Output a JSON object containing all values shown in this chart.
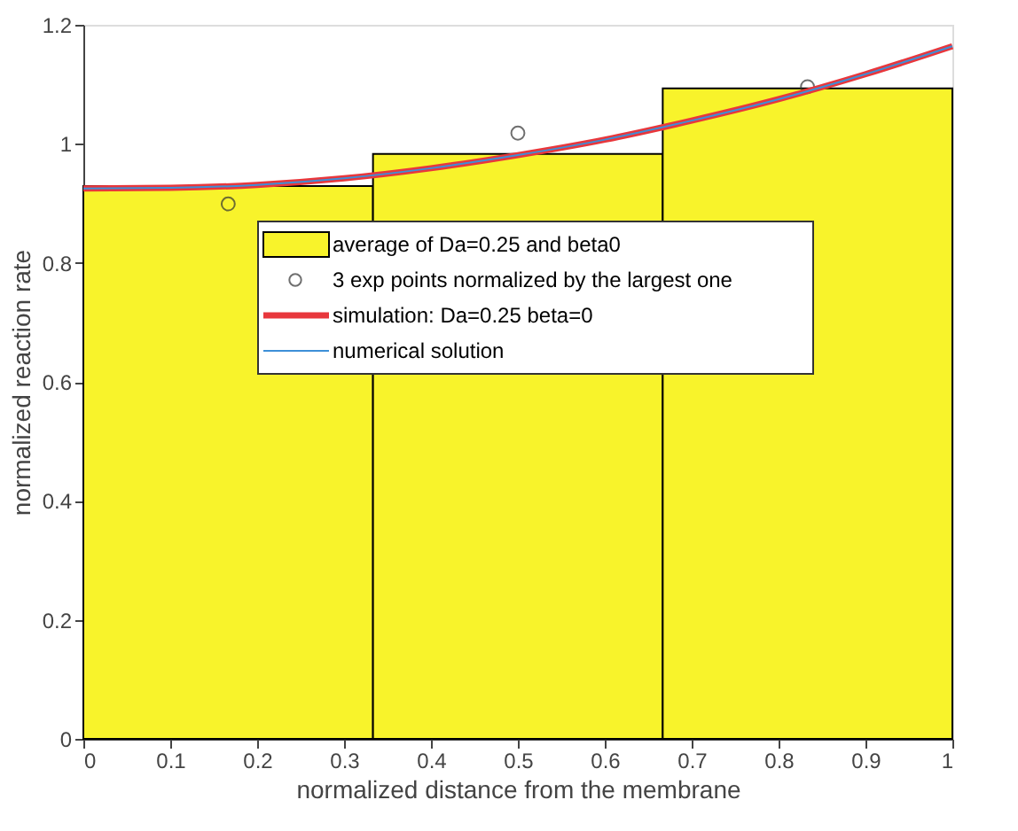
{
  "chart_data": {
    "type": "histogram",
    "xlabel": "normalized distance from the membrane",
    "ylabel": "normalized reaction rate",
    "xlim": [
      0,
      1
    ],
    "xticks": [
      0,
      0.1,
      0.2,
      0.3,
      0.4,
      0.5,
      0.6,
      0.7,
      0.8,
      0.9,
      1
    ],
    "ylim": [
      0,
      1.2
    ],
    "yticks": [
      0,
      0.2,
      0.4,
      0.6,
      0.8,
      1,
      1.2
    ],
    "grid": false,
    "legend": "top",
    "series": [
      {
        "name": "average of Da=0.25 and beta0",
        "color": "#f8f32b",
        "bins": [
          0,
          0.3333,
          0.6667,
          1
        ],
        "values": [
          0.929,
          0.983,
          1.093
        ]
      },
      {
        "type": "scatter",
        "name": "3 exp points normalized by the largest one",
        "color": "#333333",
        "marker": "circle",
        "x": [
          0.1667,
          0.5,
          0.8333
        ],
        "values": [
          0.899,
          1.018,
          1.096
        ]
      },
      {
        "type": "line",
        "name": "simulation: Da=0.25 beta=0",
        "color": "#e8373c",
        "x": [
          0,
          0.1,
          0.2,
          0.3,
          0.4,
          0.5,
          0.6,
          0.7,
          0.8,
          0.9,
          1
        ],
        "values": [
          0.925,
          0.926,
          0.931,
          0.942,
          0.959,
          0.981,
          1.007,
          1.039,
          1.075,
          1.117,
          1.164
        ]
      },
      {
        "type": "line",
        "name": "numerical solution",
        "color": "#3d8fd8",
        "x": [
          0,
          0.1,
          0.2,
          0.3,
          0.4,
          0.5,
          0.6,
          0.7,
          0.8,
          0.9,
          1
        ],
        "values": [
          0.925,
          0.926,
          0.931,
          0.942,
          0.959,
          0.981,
          1.007,
          1.039,
          1.075,
          1.117,
          1.164
        ]
      }
    ]
  }
}
